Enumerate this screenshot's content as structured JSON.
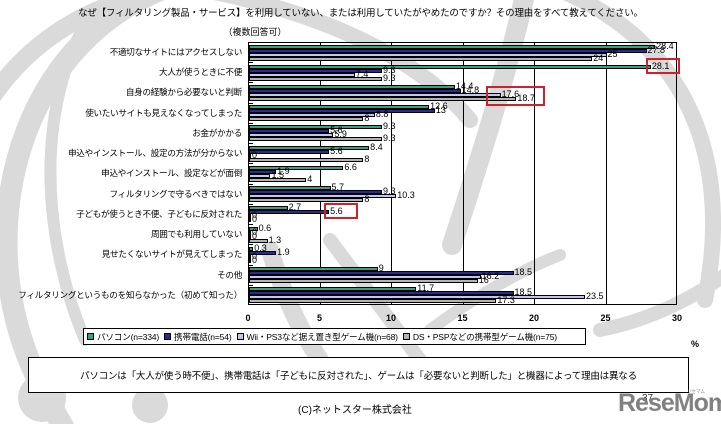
{
  "copyright": "(C)ネットスター株式会社",
  "summary": "パソコンは「大人が使う時不便」、携帯電話は「子どもに反対された」、ゲームは「必要ないと判断した」と機器によって理由は異なる",
  "page_number": "37",
  "logo": {
    "text": "ReseMom",
    "kana": "リセマム",
    "color": "#7b7b7b"
  },
  "chart_data": {
    "type": "bar",
    "orientation": "horizontal",
    "title": "なぜ【フィルタリング製品・サービス】を利用していない、または利用していたがやめたのですか？その理由をすべて教えてください。",
    "subtitle": "（複数回答可）",
    "xlabel": "%",
    "ylabel": "",
    "xlim": [
      0,
      30
    ],
    "xticks": [
      0,
      5,
      10,
      15,
      20,
      25,
      30
    ],
    "grid": true,
    "legend_position": "bottom",
    "categories": [
      "不適切なサイトにはアクセスしない",
      "大人が使うときに不便",
      "自身の経験から必要ないと判断",
      "使いたいサイトも見えなくなってしまった",
      "お金がかかる",
      "申込やインストール、設定の方法が分からない",
      "申込やインストール、設定などが面倒",
      "フィルタリングで守るべきではない",
      "子どもが使うとき不便、子どもに反対された",
      "周囲でも利用していない",
      "見せたくないサイトが見えてしまった",
      "その他",
      "フィルタリングというものを知らなかった（初めて知った）"
    ],
    "series": [
      {
        "name": "パソコン(n=334)",
        "color": "#3c9f80",
        "values": [
          28.4,
          28.1,
          14.4,
          12.6,
          9.3,
          8.4,
          6.6,
          5.7,
          2.7,
          0.6,
          0.3,
          9,
          11.7
        ]
      },
      {
        "name": "携帯電話(n=54)",
        "color": "#2b2b8f",
        "values": [
          27.8,
          9.3,
          14.8,
          13,
          5.6,
          5.6,
          1.9,
          9.3,
          5.6,
          0,
          1.9,
          18.5,
          18.5
        ]
      },
      {
        "name": "Wii・PS3など据え置き型ゲーム機(n=68)",
        "color": "#c4c4f2",
        "values": [
          25,
          7.4,
          17.6,
          8.8,
          5.9,
          0,
          1.5,
          10.3,
          0,
          0,
          0,
          16.2,
          23.5
        ]
      },
      {
        "name": "DS・PSPなどの携帯型ゲーム機(n=75)",
        "color": "#b4b4b4",
        "values": [
          24,
          9.3,
          18.7,
          8,
          9.3,
          8,
          4,
          8,
          0,
          1.3,
          0,
          16,
          17.3
        ]
      }
    ],
    "highlights": [
      {
        "category": 1,
        "series": [
          0
        ]
      },
      {
        "category": 2,
        "series": [
          2,
          3
        ]
      },
      {
        "category": 8,
        "series": [
          1
        ]
      }
    ],
    "highlight_color": "#d0202a"
  }
}
